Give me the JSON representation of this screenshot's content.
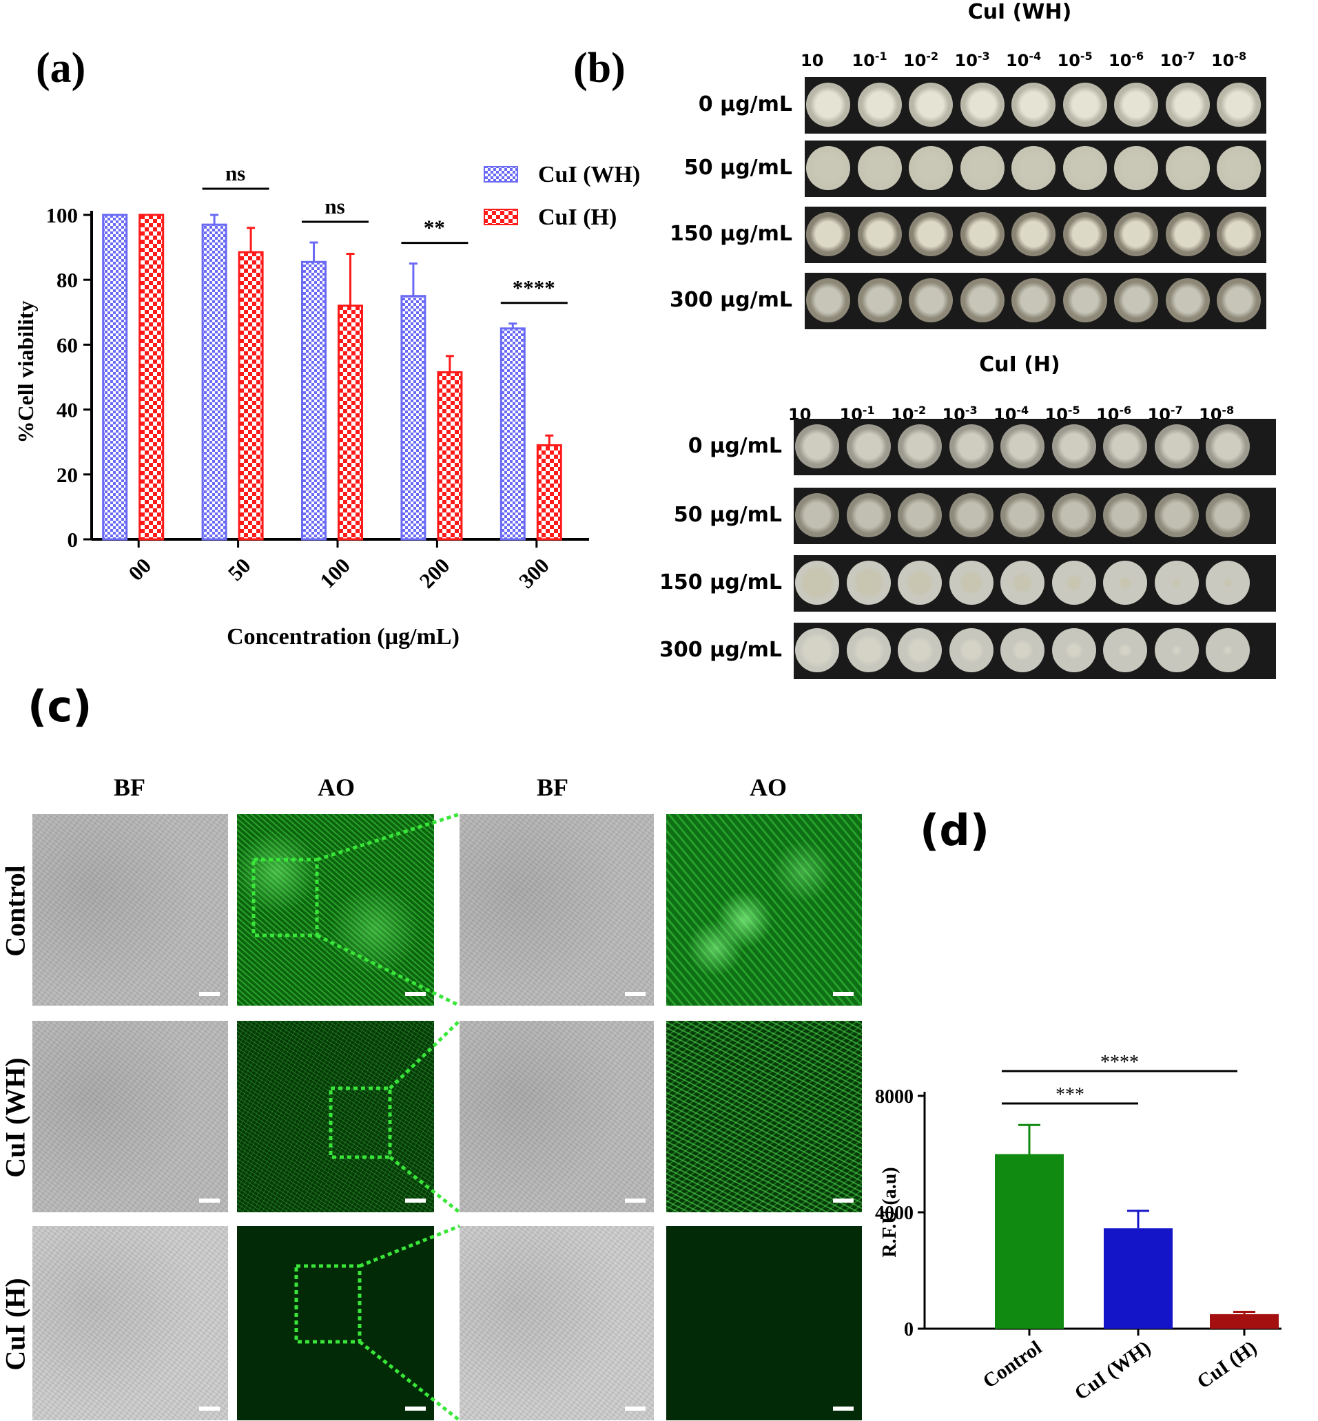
{
  "panels": {
    "a": "(a)",
    "b": "(b)",
    "c": "(c)",
    "d": "(d)"
  },
  "chart_data": [
    {
      "id": "a",
      "type": "bar",
      "xlabel": "Concentration (µg/mL)",
      "ylabel": "%Cell viability",
      "categories": [
        "00",
        "50",
        "100",
        "200",
        "300"
      ],
      "ylim": [
        0,
        100
      ],
      "yticks": [
        0,
        20,
        40,
        60,
        80,
        100
      ],
      "series": [
        {
          "name": "CuI (WH)",
          "color": "#6a6af5",
          "values": [
            100,
            97,
            85.5,
            75,
            65
          ],
          "errors": [
            0,
            3,
            6,
            10,
            1.5
          ]
        },
        {
          "name": "CuI (H)",
          "color": "#ff1a1a",
          "values": [
            100,
            88.5,
            72,
            51.5,
            29
          ],
          "errors": [
            0,
            7.5,
            16,
            5,
            3
          ]
        }
      ],
      "significance": [
        "ns",
        "ns",
        "**",
        "****"
      ],
      "legend_position": "top-right"
    },
    {
      "id": "d",
      "type": "bar",
      "xlabel": "",
      "ylabel": "R.F.U (a.u)",
      "categories": [
        "Control",
        "CuI (WH)",
        "CuI (H)"
      ],
      "ylim": [
        0,
        8000
      ],
      "yticks": [
        0,
        4000,
        8000
      ],
      "series": [
        {
          "values": [
            6000,
            3450,
            500
          ],
          "errors": [
            1000,
            600,
            80
          ],
          "colors": [
            "#118a11",
            "#1414c8",
            "#a41010"
          ]
        }
      ],
      "significance": [
        {
          "from": "Control",
          "to": "CuI (WH)",
          "label": "***"
        },
        {
          "from": "Control",
          "to": "CuI (H)",
          "label": "****"
        }
      ]
    }
  ],
  "panel_b": {
    "plates": [
      {
        "title": "CuI (WH)",
        "dilutions": [
          "10",
          "10",
          "10",
          "10",
          "10",
          "10",
          "10",
          "10",
          "10"
        ],
        "exponents": [
          "",
          "-1",
          "-2",
          "-3",
          "-4",
          "-5",
          "-6",
          "-7",
          "-8"
        ],
        "rows": [
          "0 µg/mL",
          "50 µg/mL",
          "150 µg/mL",
          "300 µg/mL"
        ]
      },
      {
        "title": "CuI (H)",
        "dilutions": [
          "10",
          "10",
          "10",
          "10",
          "10",
          "10",
          "10",
          "10",
          "10"
        ],
        "exponents": [
          "",
          "-1",
          "-2",
          "-3",
          "-4",
          "-5",
          "-6",
          "-7",
          "-8"
        ],
        "rows": [
          "0 µg/mL",
          "50 µg/mL",
          "150 µg/mL",
          "300 µg/mL"
        ]
      }
    ]
  },
  "panel_c": {
    "columns": [
      "BF",
      "AO",
      "BF",
      "AO"
    ],
    "rows": [
      "Control",
      "CuI (WH)",
      "CuI (H)"
    ]
  }
}
